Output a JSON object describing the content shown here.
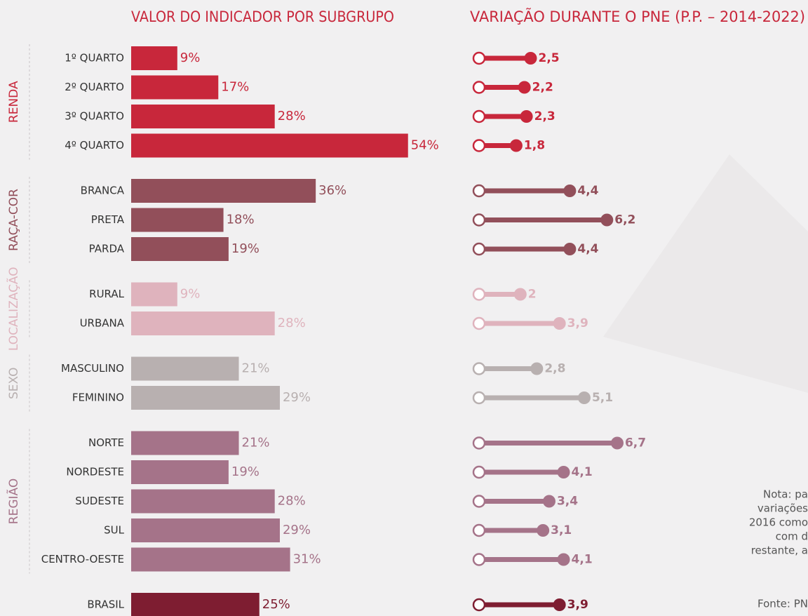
{
  "chart_data": [
    {
      "type": "bar",
      "title": "VALOR DO INDICADOR POR SUBGRUPO",
      "groups": [
        {
          "name": "RENDA",
          "color": "#c8273b",
          "categories": [
            "1º QUARTO",
            "2º QUARTO",
            "3º QUARTO",
            "4º QUARTO"
          ],
          "values": [
            9,
            17,
            28,
            54
          ],
          "value_labels": [
            "9%",
            "17%",
            "28%",
            "54%"
          ]
        },
        {
          "name": "RAÇA-COR",
          "color": "#924f5a",
          "categories": [
            "BRANCA",
            "PRETA",
            "PARDA"
          ],
          "values": [
            36,
            18,
            19
          ],
          "value_labels": [
            "36%",
            "18%",
            "19%"
          ]
        },
        {
          "name": "LOCALIZAÇÃO",
          "color": "#dfb3bd",
          "categories": [
            "RURAL",
            "URBANA"
          ],
          "values": [
            9,
            28
          ],
          "value_labels": [
            "9%",
            "28%"
          ]
        },
        {
          "name": "SEXO",
          "color": "#b8b0b0",
          "categories": [
            "MASCULINO",
            "FEMININO"
          ],
          "values": [
            21,
            29
          ],
          "value_labels": [
            "21%",
            "29%"
          ]
        },
        {
          "name": "REGIÃO",
          "color": "#a57389",
          "categories": [
            "NORTE",
            "NORDESTE",
            "SUDESTE",
            "SUL",
            "CENTRO-OESTE"
          ],
          "values": [
            21,
            19,
            28,
            29,
            31
          ],
          "value_labels": [
            "21%",
            "19%",
            "28%",
            "29%",
            "31%"
          ]
        },
        {
          "color": "#7e1d31",
          "categories": [
            "BRASIL"
          ],
          "values": [
            25
          ],
          "value_labels": [
            "25%"
          ]
        }
      ]
    },
    {
      "type": "dumbbell",
      "title": "VARIAÇÃO DURANTE O PNE (P.P. – 2014-2022)",
      "groups": [
        {
          "color": "#c8273b",
          "values": [
            2.5,
            2.2,
            2.3,
            1.8
          ],
          "value_labels": [
            "2,5",
            "2,2",
            "2,3",
            "1,8"
          ]
        },
        {
          "color": "#924f5a",
          "values": [
            4.4,
            6.2,
            4.4
          ],
          "value_labels": [
            "4,4",
            "6,2",
            "4,4"
          ]
        },
        {
          "color": "#dfb3bd",
          "values": [
            2,
            3.9
          ],
          "value_labels": [
            "2",
            "3,9"
          ]
        },
        {
          "color": "#b8b0b0",
          "values": [
            2.8,
            5.1
          ],
          "value_labels": [
            "2,8",
            "5,1"
          ]
        },
        {
          "color": "#a57389",
          "values": [
            6.7,
            4.1,
            3.4,
            3.1,
            4.1
          ],
          "value_labels": [
            "6,7",
            "4,1",
            "3,4",
            "3,1",
            "4,1"
          ]
        },
        {
          "color": "#7e1d31",
          "values": [
            3.9
          ],
          "value_labels": [
            "3,9"
          ]
        }
      ]
    }
  ],
  "note": [
    "Nota: pa",
    "variações",
    "2016 como",
    "com d",
    "restante, a"
  ],
  "source": "Fonte: PN"
}
